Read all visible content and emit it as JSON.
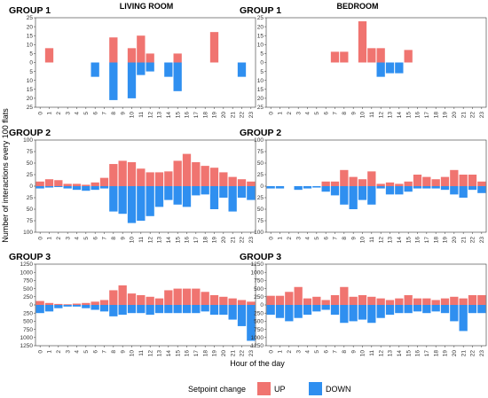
{
  "figure": {
    "columns": [
      "LIVING ROOM",
      "BEDROOM"
    ],
    "ylabel": "Number of interactions every 100 flats",
    "xlabel": "Hour of the day",
    "legend": {
      "title": "Setpoint change",
      "items": [
        {
          "label": "UP",
          "color": "#F07470"
        },
        {
          "label": "DOWN",
          "color": "#2F8FF0"
        }
      ]
    },
    "hours": [
      "0",
      "1",
      "2",
      "3",
      "4",
      "5",
      "6",
      "7",
      "8",
      "9",
      "10",
      "11",
      "12",
      "13",
      "14",
      "15",
      "16",
      "17",
      "18",
      "19",
      "20",
      "21",
      "22",
      "23"
    ]
  },
  "chart_data": [
    {
      "type": "bar",
      "title": "GROUP 1",
      "room": "LIVING ROOM",
      "x": [
        0,
        1,
        2,
        3,
        4,
        5,
        6,
        7,
        8,
        9,
        10,
        11,
        12,
        13,
        14,
        15,
        16,
        17,
        18,
        19,
        20,
        21,
        22,
        23
      ],
      "yticks": [
        "25",
        "20",
        "15",
        "10",
        "5",
        "0",
        "5",
        "10",
        "15",
        "20",
        "25"
      ],
      "ylim": [
        -25,
        25
      ],
      "series": [
        {
          "name": "UP",
          "values": [
            0,
            8,
            0,
            0,
            0,
            0,
            0,
            0,
            14,
            0,
            8,
            15,
            5,
            0,
            0,
            5,
            0,
            0,
            0,
            17,
            0,
            0,
            0,
            0
          ]
        },
        {
          "name": "DOWN",
          "values": [
            0,
            0,
            0,
            0,
            0,
            0,
            -8,
            0,
            -21,
            0,
            -20,
            -7,
            -5,
            0,
            -8,
            -16,
            0,
            0,
            0,
            0,
            0,
            0,
            -8,
            0
          ]
        }
      ]
    },
    {
      "type": "bar",
      "title": "GROUP 1",
      "room": "BEDROOM",
      "x": [
        0,
        1,
        2,
        3,
        4,
        5,
        6,
        7,
        8,
        9,
        10,
        11,
        12,
        13,
        14,
        15,
        16,
        17,
        18,
        19,
        20,
        21,
        22,
        23
      ],
      "yticks": [
        "25",
        "20",
        "15",
        "10",
        "5",
        "0",
        "5",
        "10",
        "15",
        "20",
        "25"
      ],
      "ylim": [
        -25,
        25
      ],
      "series": [
        {
          "name": "UP",
          "values": [
            0,
            0,
            0,
            0,
            0,
            0,
            0,
            6,
            6,
            0,
            23,
            8,
            8,
            0,
            0,
            7,
            0,
            0,
            0,
            0,
            0,
            0,
            0,
            0
          ]
        },
        {
          "name": "DOWN",
          "values": [
            0,
            0,
            0,
            0,
            0,
            0,
            0,
            0,
            0,
            0,
            0,
            0,
            -8,
            -6,
            -6,
            0,
            0,
            0,
            0,
            0,
            0,
            0,
            0,
            0
          ]
        }
      ]
    },
    {
      "type": "bar",
      "title": "GROUP 2",
      "room": "LIVING ROOM",
      "x": [
        0,
        1,
        2,
        3,
        4,
        5,
        6,
        7,
        8,
        9,
        10,
        11,
        12,
        13,
        14,
        15,
        16,
        17,
        18,
        19,
        20,
        21,
        22,
        23
      ],
      "yticks": [
        "100",
        "75",
        "50",
        "25",
        "0",
        "25",
        "50",
        "75",
        "100"
      ],
      "ylim": [
        -100,
        100
      ],
      "series": [
        {
          "name": "UP",
          "values": [
            10,
            15,
            13,
            5,
            5,
            3,
            8,
            18,
            48,
            55,
            52,
            38,
            30,
            30,
            32,
            55,
            70,
            52,
            44,
            40,
            30,
            20,
            15,
            10
          ]
        },
        {
          "name": "DOWN",
          "values": [
            -5,
            -3,
            -2,
            -5,
            -8,
            -10,
            -8,
            -5,
            -55,
            -60,
            -80,
            -75,
            -65,
            -45,
            -30,
            -40,
            -45,
            -20,
            -18,
            -50,
            -25,
            -55,
            -25,
            -30
          ]
        }
      ]
    },
    {
      "type": "bar",
      "title": "GROUP 2",
      "room": "BEDROOM",
      "x": [
        0,
        1,
        2,
        3,
        4,
        5,
        6,
        7,
        8,
        9,
        10,
        11,
        12,
        13,
        14,
        15,
        16,
        17,
        18,
        19,
        20,
        21,
        22,
        23
      ],
      "yticks": [
        "100",
        "75",
        "50",
        "25",
        "0",
        "25",
        "50",
        "75",
        "100"
      ],
      "ylim": [
        -100,
        100
      ],
      "series": [
        {
          "name": "UP",
          "values": [
            0,
            0,
            0,
            0,
            0,
            0,
            10,
            10,
            35,
            20,
            15,
            32,
            5,
            8,
            5,
            10,
            25,
            20,
            15,
            20,
            35,
            25,
            25,
            10
          ]
        },
        {
          "name": "DOWN",
          "values": [
            -5,
            -5,
            0,
            -8,
            -5,
            -3,
            -12,
            -20,
            -40,
            -50,
            -30,
            -40,
            -5,
            -18,
            -18,
            -12,
            -5,
            -5,
            -5,
            -8,
            -18,
            -25,
            -8,
            -15
          ]
        }
      ]
    },
    {
      "type": "bar",
      "title": "GROUP 3",
      "room": "LIVING ROOM",
      "x": [
        0,
        1,
        2,
        3,
        4,
        5,
        6,
        7,
        8,
        9,
        10,
        11,
        12,
        13,
        14,
        15,
        16,
        17,
        18,
        19,
        20,
        21,
        22,
        23
      ],
      "yticks": [
        "1250",
        "1000",
        "750",
        "500",
        "250",
        "0",
        "250",
        "500",
        "750",
        "1000",
        "1250"
      ],
      "ylim": [
        -1250,
        1250
      ],
      "series": [
        {
          "name": "UP",
          "values": [
            120,
            60,
            30,
            20,
            40,
            60,
            100,
            150,
            450,
            600,
            350,
            300,
            250,
            200,
            450,
            500,
            500,
            500,
            400,
            300,
            250,
            200,
            150,
            100
          ]
        },
        {
          "name": "DOWN",
          "values": [
            -250,
            -200,
            -100,
            -50,
            -50,
            -100,
            -150,
            -200,
            -350,
            -300,
            -250,
            -250,
            -300,
            -250,
            -250,
            -250,
            -250,
            -250,
            -200,
            -300,
            -300,
            -450,
            -650,
            -1100
          ]
        }
      ]
    },
    {
      "type": "bar",
      "title": "GROUP 3",
      "room": "BEDROOM",
      "x": [
        0,
        1,
        2,
        3,
        4,
        5,
        6,
        7,
        8,
        9,
        10,
        11,
        12,
        13,
        14,
        15,
        16,
        17,
        18,
        19,
        20,
        21,
        22,
        23
      ],
      "yticks": [
        "1250",
        "1000",
        "750",
        "500",
        "250",
        "0",
        "250",
        "500",
        "750",
        "1000",
        "1250"
      ],
      "ylim": [
        -1250,
        1250
      ],
      "series": [
        {
          "name": "UP",
          "values": [
            280,
            280,
            400,
            550,
            200,
            250,
            150,
            300,
            550,
            250,
            300,
            250,
            200,
            150,
            200,
            300,
            200,
            200,
            150,
            200,
            250,
            200,
            300,
            300
          ]
        },
        {
          "name": "DOWN",
          "values": [
            -300,
            -400,
            -500,
            -400,
            -300,
            -200,
            -150,
            -300,
            -550,
            -500,
            -450,
            -550,
            -400,
            -300,
            -250,
            -250,
            -200,
            -250,
            -200,
            -250,
            -500,
            -800,
            -250,
            -250
          ]
        }
      ]
    }
  ]
}
